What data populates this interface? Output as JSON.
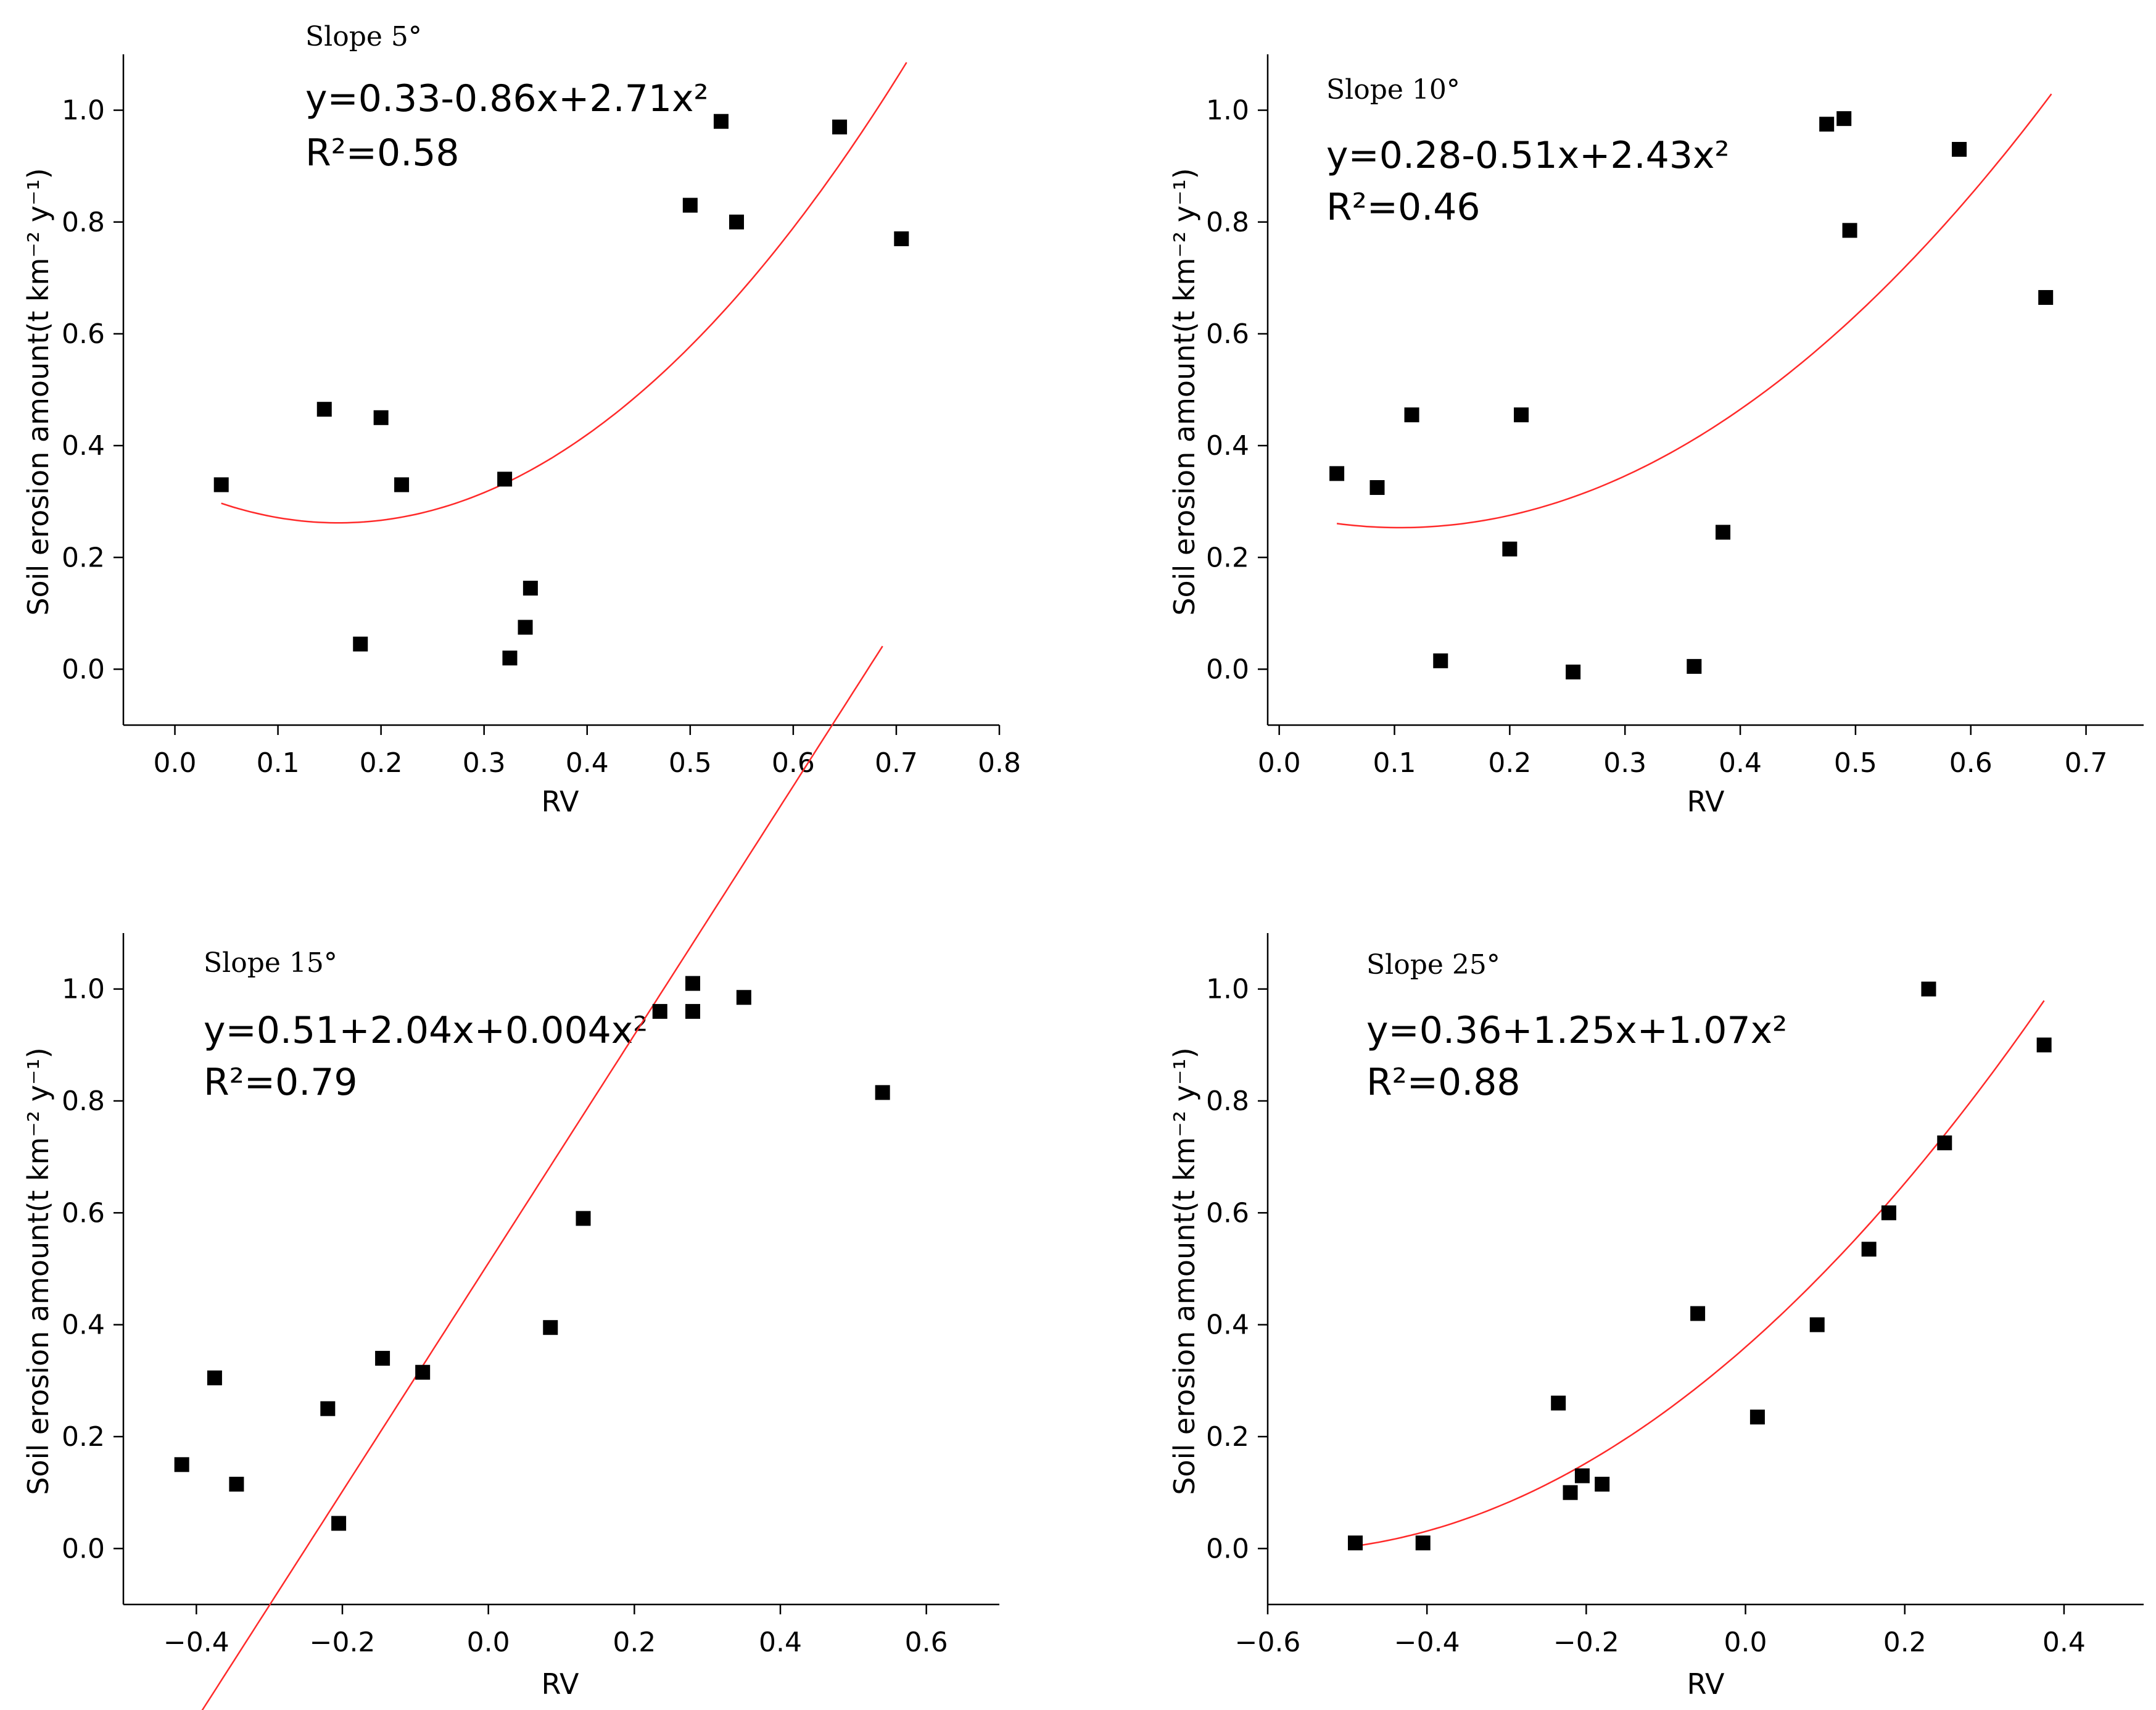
{
  "figure": {
    "ylabel": "Soil erosion amount(t km⁻² y⁻¹)",
    "xlabel": "RV"
  },
  "chart_data": [
    {
      "type": "scatter",
      "title": "Slope 5°",
      "equation": "y=0.33-0.86x+2.71x²",
      "r2": "R²=0.58",
      "xlim": [
        -0.05,
        0.8
      ],
      "ylim": [
        -0.1,
        1.1
      ],
      "xticks": [
        0.0,
        0.1,
        0.2,
        0.3,
        0.4,
        0.5,
        0.6,
        0.7,
        0.8
      ],
      "xtick_labels": [
        "0.0",
        "0.1",
        "0.2",
        "0.3",
        "0.4",
        "0.5",
        "0.6",
        "0.7",
        "0.8"
      ],
      "yticks": [
        0.0,
        0.2,
        0.4,
        0.6,
        0.8,
        1.0
      ],
      "ytick_labels": [
        "0.0",
        "0.2",
        "0.4",
        "0.6",
        "0.8",
        "1.0"
      ],
      "coef": [
        0.33,
        -0.86,
        2.71
      ],
      "fit_range": [
        0.045,
        0.71
      ],
      "points": [
        [
          0.045,
          0.33
        ],
        [
          0.145,
          0.465
        ],
        [
          0.18,
          0.045
        ],
        [
          0.2,
          0.45
        ],
        [
          0.22,
          0.33
        ],
        [
          0.32,
          0.34
        ],
        [
          0.325,
          0.02
        ],
        [
          0.34,
          0.075
        ],
        [
          0.345,
          0.145
        ],
        [
          0.5,
          0.83
        ],
        [
          0.53,
          0.98
        ],
        [
          0.545,
          0.8
        ],
        [
          0.645,
          0.97
        ],
        [
          0.705,
          0.77
        ]
      ]
    },
    {
      "type": "scatter",
      "title": "Slope 10°",
      "equation": "y=0.28-0.51x+2.43x²",
      "r2": "R²=0.46",
      "xlim": [
        -0.01,
        0.75
      ],
      "ylim": [
        -0.1,
        1.1
      ],
      "xticks": [
        0.0,
        0.1,
        0.2,
        0.3,
        0.4,
        0.5,
        0.6,
        0.7
      ],
      "xtick_labels": [
        "0.0",
        "0.1",
        "0.2",
        "0.3",
        "0.4",
        "0.5",
        "0.6",
        "0.7"
      ],
      "yticks": [
        0.0,
        0.2,
        0.4,
        0.6,
        0.8,
        1.0
      ],
      "ytick_labels": [
        "0.0",
        "0.2",
        "0.4",
        "0.6",
        "0.8",
        "1.0"
      ],
      "coef": [
        0.28,
        -0.51,
        2.43
      ],
      "fit_range": [
        0.05,
        0.67
      ],
      "points": [
        [
          0.05,
          0.35
        ],
        [
          0.085,
          0.325
        ],
        [
          0.115,
          0.455
        ],
        [
          0.14,
          0.015
        ],
        [
          0.2,
          0.215
        ],
        [
          0.21,
          0.455
        ],
        [
          0.255,
          -0.005
        ],
        [
          0.36,
          0.005
        ],
        [
          0.385,
          0.245
        ],
        [
          0.475,
          0.975
        ],
        [
          0.49,
          0.985
        ],
        [
          0.495,
          0.785
        ],
        [
          0.59,
          0.93
        ],
        [
          0.665,
          0.665
        ]
      ]
    },
    {
      "type": "scatter",
      "title": "Slope 15°",
      "equation": "y=0.51+2.04x+0.004x²",
      "r2": "R²=0.79",
      "xlim": [
        -0.5,
        0.7
      ],
      "ylim": [
        -0.1,
        1.1
      ],
      "xticks": [
        -0.4,
        -0.2,
        0.0,
        0.2,
        0.4,
        0.6
      ],
      "xtick_labels": [
        "−0.4",
        "−0.2",
        "0.0",
        "0.2",
        "0.4",
        "0.6"
      ],
      "yticks": [
        0.0,
        0.2,
        0.4,
        0.6,
        0.8,
        1.0
      ],
      "ytick_labels": [
        "0.0",
        "0.2",
        "0.4",
        "0.6",
        "0.8",
        "1.0"
      ],
      "coef": [
        0.51,
        2.04,
        0.004
      ],
      "fit_range": [
        -0.42,
        0.54
      ],
      "points": [
        [
          -0.42,
          0.15
        ],
        [
          -0.375,
          0.305
        ],
        [
          -0.345,
          0.115
        ],
        [
          -0.22,
          0.25
        ],
        [
          -0.205,
          0.045
        ],
        [
          -0.145,
          0.34
        ],
        [
          -0.09,
          0.315
        ],
        [
          0.085,
          0.395
        ],
        [
          0.13,
          0.59
        ],
        [
          0.235,
          0.96
        ],
        [
          0.28,
          0.96
        ],
        [
          0.28,
          1.01
        ],
        [
          0.35,
          0.985
        ],
        [
          0.54,
          0.815
        ]
      ]
    },
    {
      "type": "scatter",
      "title": "Slope 25°",
      "equation": "y=0.36+1.25x+1.07x²",
      "r2": "R²=0.88",
      "xlim": [
        -0.6,
        0.5
      ],
      "ylim": [
        -0.1,
        1.1
      ],
      "xticks": [
        -0.6,
        -0.4,
        -0.2,
        0.0,
        0.2,
        0.4
      ],
      "xtick_labels": [
        "−0.6",
        "−0.4",
        "−0.2",
        "0.0",
        "0.2",
        "0.4"
      ],
      "yticks": [
        0.0,
        0.2,
        0.4,
        0.6,
        0.8,
        1.0
      ],
      "ytick_labels": [
        "0.0",
        "0.2",
        "0.4",
        "0.6",
        "0.8",
        "1.0"
      ],
      "coef": [
        0.36,
        1.25,
        1.07
      ],
      "fit_range": [
        -0.49,
        0.375
      ],
      "points": [
        [
          -0.49,
          0.01
        ],
        [
          -0.405,
          0.01
        ],
        [
          -0.235,
          0.26
        ],
        [
          -0.22,
          0.1
        ],
        [
          -0.205,
          0.13
        ],
        [
          -0.18,
          0.115
        ],
        [
          -0.06,
          0.42
        ],
        [
          0.015,
          0.235
        ],
        [
          0.09,
          0.4
        ],
        [
          0.155,
          0.535
        ],
        [
          0.18,
          0.6
        ],
        [
          0.23,
          1.0
        ],
        [
          0.25,
          0.725
        ],
        [
          0.375,
          0.9
        ]
      ]
    }
  ]
}
